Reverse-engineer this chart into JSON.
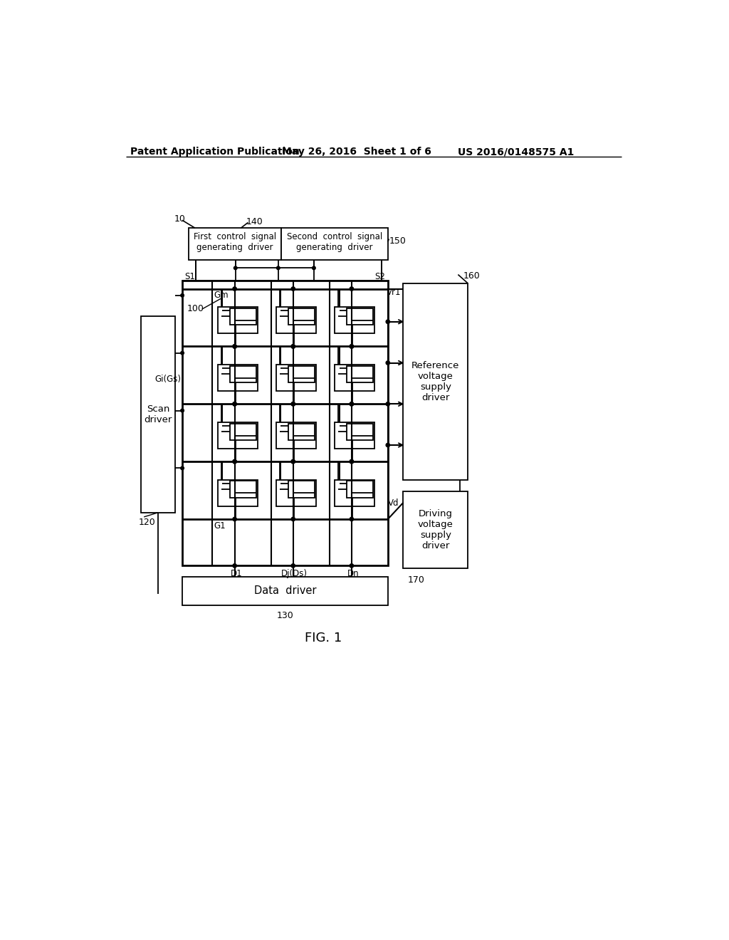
{
  "bg_color": "#ffffff",
  "lc": "#000000",
  "header_left": "Patent Application Publication",
  "header_mid": "May 26, 2016  Sheet 1 of 6",
  "header_right": "US 2016/0148575 A1",
  "fig_label": "FIG. 1",
  "box_first_ctrl": "First  control  signal\ngenerating  driver",
  "box_second_ctrl": "Second  control  signal\ngenerating  driver",
  "box_scan": "Scan\ndriver",
  "box_data": "Data  driver",
  "box_ref": "Reference\nvoltage\nsupply\ndriver",
  "box_drive": "Driving\nvoltage\nsupply\ndriver",
  "label_10": "10",
  "label_140": "140",
  "label_150": "150",
  "label_160": "160",
  "label_170": "170",
  "label_120": "120",
  "label_130": "130",
  "label_100": "100",
  "label_S1": "S1",
  "label_S2": "S2",
  "label_Gm": "Gm",
  "label_Gi": "Gi(Gs)",
  "label_G1": "G1",
  "label_D1": "D1",
  "label_Dj": "Dj(Ds)",
  "label_Dn": "Dn",
  "label_Vr1": "Vr1",
  "label_Vd": "Vd"
}
